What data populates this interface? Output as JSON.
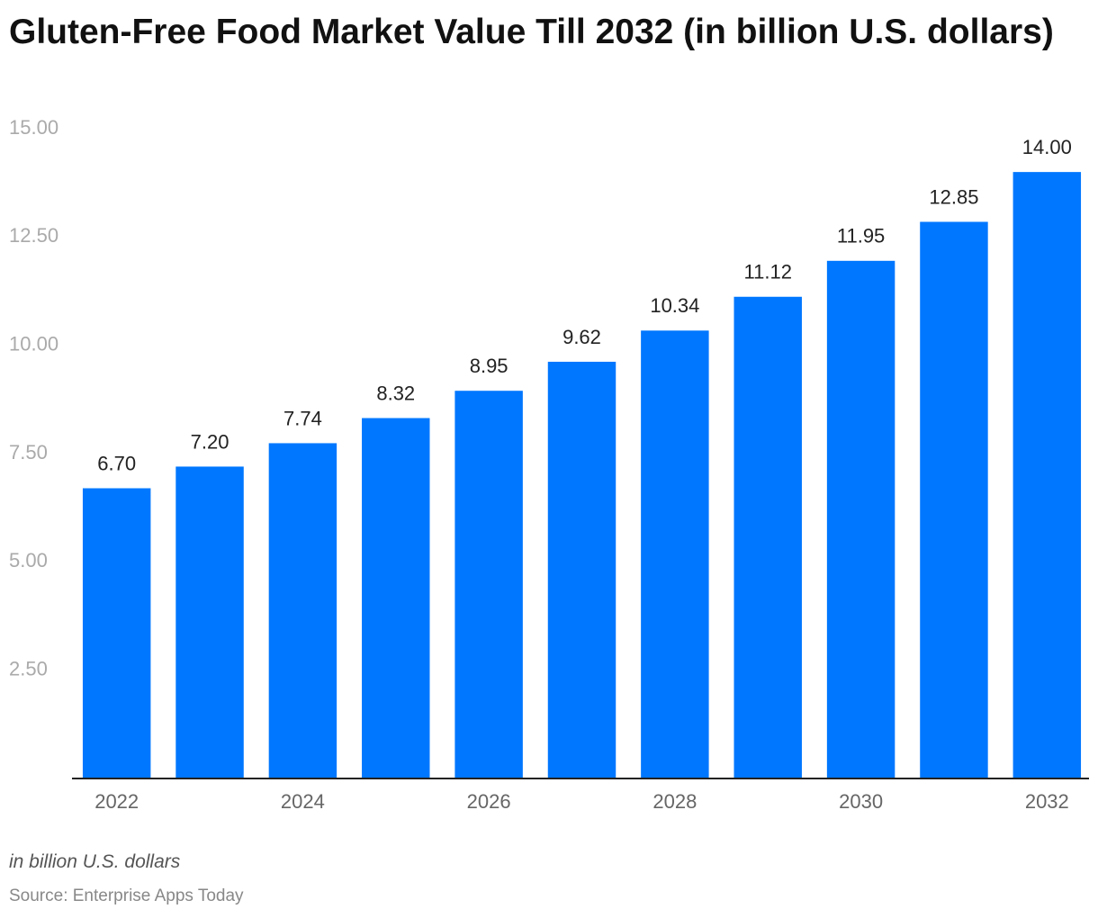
{
  "chart_data": {
    "type": "bar",
    "title": "Gluten-Free Food Market Value Till 2032 (in billion U.S. dollars)",
    "categories": [
      "2022",
      null,
      "2024",
      null,
      "2026",
      null,
      "2028",
      null,
      "2030",
      null,
      "2032"
    ],
    "values": [
      6.7,
      7.2,
      7.74,
      8.32,
      8.95,
      9.62,
      10.34,
      11.12,
      11.95,
      12.85,
      14.0
    ],
    "value_labels": [
      "6.70",
      "7.20",
      "7.74",
      "8.32",
      "8.95",
      "9.62",
      "10.34",
      "11.12",
      "11.95",
      "12.85",
      "14.00"
    ],
    "color": "#0077ff",
    "ylim": [
      0,
      15
    ],
    "yticks": [
      {
        "value": 2.5,
        "label": "2.50"
      },
      {
        "value": 5,
        "label": "5.00"
      },
      {
        "value": 7.5,
        "label": "7.50"
      },
      {
        "value": 10,
        "label": "10.00"
      },
      {
        "value": 12.5,
        "label": "12.50"
      },
      {
        "value": 15,
        "label": "15.00"
      }
    ],
    "grid": false,
    "note": "in billion U.S. dollars",
    "source": "Source: Enterprise Apps Today"
  }
}
